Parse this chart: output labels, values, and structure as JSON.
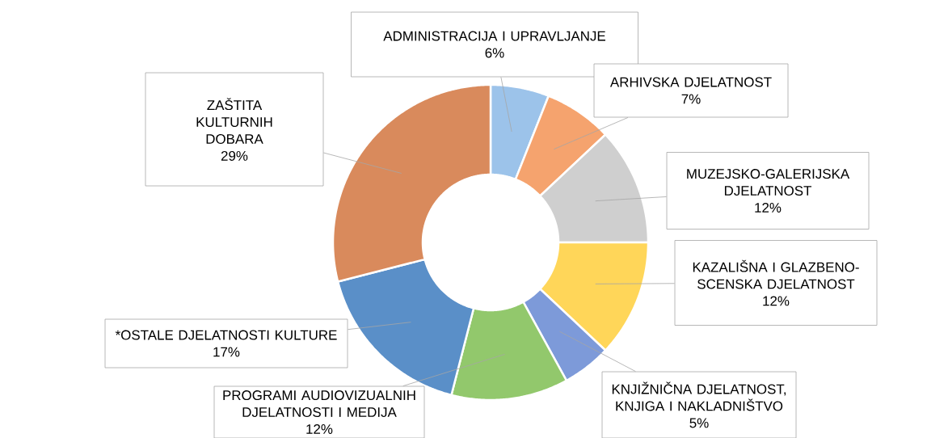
{
  "chart_data": {
    "type": "donut",
    "categories": [
      "ADMINISTRACIJA I UPRAVLJANJE",
      "ARHIVSKA DJELATNOST",
      "MUZEJSKO-GALERIJSKA DJELATNOST",
      "KAZALIŠNA I GLAZBENO-SCENSKA DJELATNOST",
      "KNJIŽNIČNA DJELATNOST, KNJIGA I NAKLADNIŠTVO",
      "PROGRAMI AUDIOVIZUALNIH DJELATNOSTI I MEDIJA",
      "*OSTALE DJELATNOSTI KULTURE",
      "ZAŠTITA KULTURNIH DOBARA"
    ],
    "values": [
      6,
      7,
      12,
      12,
      5,
      12,
      17,
      29
    ],
    "colors": [
      "#9cc3ea",
      "#f5a36e",
      "#cfcfcf",
      "#ffd659",
      "#7d9ad9",
      "#92c86c",
      "#5a8fc8",
      "#d98a5c"
    ],
    "value_labels": [
      "6%",
      "7%",
      "12%",
      "12%",
      "5%",
      "12%",
      "17%",
      "29%"
    ]
  }
}
